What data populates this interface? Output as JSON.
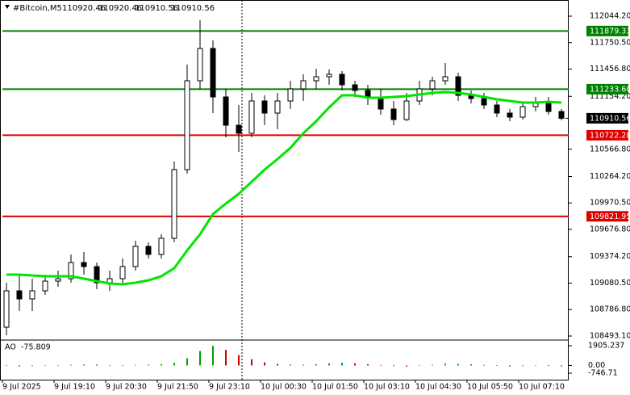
{
  "chart_data": {
    "type": "candlestick",
    "symbol": "#Bitcoin,M5",
    "header_values": [
      110920.46,
      110920.46,
      110910.56,
      110910.56
    ],
    "x_labels": [
      "9 Jul 2025",
      "9 Jul 19:10",
      "9 Jul 20:30",
      "9 Jul 21:50",
      "9 Jul 23:10",
      "10 Jul 00:30",
      "10 Jul 01:50",
      "10 Jul 03:10",
      "10 Jul 04:30",
      "10 Jul 05:50",
      "10 Jul 07:10"
    ],
    "open": [
      108591.6,
      108995.1,
      108905.4,
      108995.1,
      109102.7,
      109129.6,
      109309.0,
      109264.2,
      109084.8,
      109129.6,
      109264.2,
      109488.4,
      109398.7,
      109578.0,
      110340.3,
      111326.8,
      111685.5,
      111147.4,
      110833.6,
      110743.9,
      111102.6,
      110968.1,
      111102.6,
      111237.1,
      111326.8,
      111371.6,
      111398.5,
      111282.0,
      111219.2,
      111147.4,
      111012.9,
      110896.3,
      111102.6,
      111237.1,
      111326.8,
      111371.6,
      111165.4,
      111129.5,
      111057.8,
      110968.1,
      110923.2,
      111039.8,
      111075.7,
      110986.0
    ],
    "high": [
      109084.8,
      109174.5,
      109129.6,
      109174.5,
      109219.3,
      109398.7,
      109425.6,
      109309.0,
      109219.3,
      109353.8,
      109551.1,
      109533.2,
      109622.9,
      110430.0,
      111506.2,
      111999.4,
      111775.2,
      111237.1,
      111057.8,
      111192.3,
      111165.4,
      111192.3,
      111326.8,
      111398.5,
      111461.3,
      111452.4,
      111434.4,
      111326.8,
      111282.0,
      111237.1,
      111102.6,
      111192.3,
      111326.8,
      111371.6,
      111524.1,
      111416.5,
      111219.2,
      111192.3,
      111102.6,
      111012.9,
      111075.7,
      111147.4,
      111147.4,
      111012.9
    ],
    "low": [
      108501.9,
      108770.9,
      108770.9,
      108950.3,
      109040.0,
      109084.8,
      109174.5,
      109013.1,
      108995.1,
      109066.9,
      109219.3,
      109353.8,
      109353.8,
      109533.2,
      110295.5,
      111237.1,
      110968.1,
      110699.0,
      110537.6,
      110699.0,
      110833.6,
      110788.7,
      111012.9,
      111102.6,
      111237.1,
      111282.0,
      111219.2,
      111147.4,
      111057.8,
      110950.1,
      110833.6,
      110878.4,
      111057.8,
      111165.4,
      111282.0,
      111102.6,
      111075.7,
      111012.9,
      110923.2,
      110878.4,
      110896.3,
      110986.0,
      110950.1,
      110887.4
    ],
    "close": [
      108995.1,
      108905.4,
      108995.1,
      109102.7,
      109129.6,
      109309.0,
      109264.2,
      109084.8,
      109129.6,
      109264.2,
      109488.4,
      109398.7,
      109578.0,
      110340.3,
      111326.8,
      111685.5,
      111147.4,
      110833.6,
      110743.9,
      111102.6,
      110968.1,
      111102.6,
      111237.1,
      111326.8,
      111371.6,
      111398.5,
      111282.0,
      111219.2,
      111147.4,
      111012.9,
      110896.3,
      111102.6,
      111237.1,
      111326.8,
      111371.6,
      111165.4,
      111129.5,
      111057.8,
      110968.1,
      110923.2,
      111039.8,
      111075.7,
      110986.0,
      110910.56
    ],
    "ma": {
      "color": "#00e600",
      "values": [
        109174.5,
        109174.5,
        109165.5,
        109156.5,
        109156.5,
        109156.5,
        109129.6,
        109102.7,
        109075.8,
        109066.9,
        109084.8,
        109111.7,
        109156.5,
        109246.2,
        109443.5,
        109622.9,
        109847.1,
        109963.7,
        110071.3,
        110205.8,
        110340.3,
        110456.9,
        110582.5,
        110743.9,
        110878.4,
        111031.2,
        111165.4,
        111165.4,
        111138.5,
        111138.5,
        111147.4,
        111156.4,
        111174.3,
        111192.3,
        111201.2,
        111192.3,
        111174.3,
        111147.4,
        111120.5,
        111102.6,
        111084.7,
        111084.7,
        111093.6,
        111084.7
      ]
    },
    "ylim": [
      108457.2,
      112223.6
    ],
    "yticks": [
      {
        "value": 112044.2,
        "label": "112044.20"
      },
      {
        "value": 111750.5,
        "label": "111750.50"
      },
      {
        "value": 111456.8,
        "label": "111456.80"
      },
      {
        "value": 111154.2,
        "label": "111154.20"
      },
      {
        "value": 110566.8,
        "label": "110566.80"
      },
      {
        "value": 110264.2,
        "label": "110264.20"
      },
      {
        "value": 109970.5,
        "label": "109970.50"
      },
      {
        "value": 109676.8,
        "label": "109676.80"
      },
      {
        "value": 109374.2,
        "label": "109374.20"
      },
      {
        "value": 109080.5,
        "label": "109080.50"
      },
      {
        "value": 108786.8,
        "label": "108786.80"
      },
      {
        "value": 108493.1,
        "label": "108493.10"
      }
    ],
    "levels": [
      {
        "value": 111879.33,
        "color": "#008000"
      },
      {
        "value": 111233.6,
        "label": "111233.60",
        "color": "#008000"
      },
      {
        "value": 110722.28,
        "color": "#e00000"
      },
      {
        "value": 109821.95,
        "color": "#e00000"
      }
    ],
    "current_price": 110910.56,
    "ao": {
      "name": "AO",
      "current": -75.809,
      "up_color": "#00a000",
      "down_color": "#d00000",
      "values": [
        -50,
        -80,
        -60,
        -30,
        20,
        60,
        90,
        80,
        40,
        30,
        50,
        80,
        120,
        250,
        700,
        1400,
        1900,
        1500,
        1000,
        600,
        300,
        150,
        80,
        60,
        120,
        200,
        250,
        200,
        120,
        40,
        -60,
        -100,
        -40,
        60,
        150,
        160,
        100,
        50,
        -30,
        -80,
        -60,
        -20,
        -50,
        -75.809
      ],
      "ylim": [
        -1371,
        2373
      ],
      "yticks": [
        1905.237,
        {
          "value": 0,
          "label": "0.00"
        },
        -746.71
      ]
    }
  }
}
